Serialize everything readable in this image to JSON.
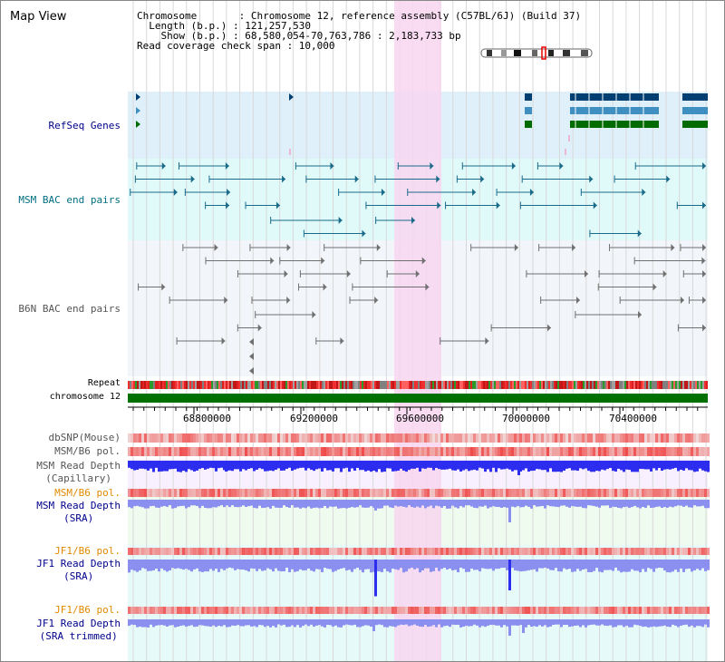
{
  "header": {
    "title": "Map View",
    "info_lines": [
      "Chromosome       : Chromosome 12, reference assembly (C57BL/6J) (Build 37)",
      "  Length (b.p.) : 121,257,530",
      "    Show (b.p.) : 68,580,054-70,763,786 : 2,183,733 bp",
      "Read coverage check span : 10,000"
    ]
  },
  "tracks": {
    "refseq_genes": "RefSeq Genes",
    "msm_bac": "MSM BAC end pairs",
    "b6n_bac": "B6N BAC end pairs",
    "repeat": "Repeat",
    "chromosome": "chromosome 12",
    "dbsnp": "dbSNP(Mouse)",
    "msm_b6_pol_1": "MSM/B6 pol.",
    "msm_read_depth_cap_1": "MSM Read Depth",
    "msm_read_depth_cap_2": "(Capillary)",
    "msm_b6_pol_2": "MSM/B6 pol.",
    "msm_read_depth_sra_1": "MSM Read Depth",
    "msm_read_depth_sra_2": "(SRA)",
    "jf1_b6_pol_1": "JF1/B6 pol.",
    "jf1_read_depth_sra_1": "JF1 Read Depth",
    "jf1_read_depth_sra_2": "(SRA)",
    "jf1_b6_pol_2": "JF1/B6 pol.",
    "jf1_read_depth_trim_1": "JF1 Read Depth",
    "jf1_read_depth_trim_2": "(SRA trimmed)"
  },
  "axis": {
    "ticks": [
      "68800000",
      "69200000",
      "69600000",
      "70000000",
      "70400000"
    ]
  },
  "colors": {
    "refseq_bg": "#dff0fa",
    "msm_bac_bg": "#e0fafa",
    "b6n_bg": "#f2f5fa",
    "highlight": "#f8d6f0",
    "gene_dark": "#003f72",
    "gene_mid": "#3f8fc0",
    "gene_green": "#006b00",
    "msm_bac": "#1a6a8a",
    "b6n_bac": "#707070",
    "chrom_bar": "#007000",
    "depth_blue": "#2d2df0",
    "depth_light": "#8a8ff0",
    "pol_red": "#f05a5a",
    "label_blue": "#00008b",
    "label_teal": "#006f80",
    "label_orange": "#e08a00",
    "label_gray": "#555555"
  }
}
